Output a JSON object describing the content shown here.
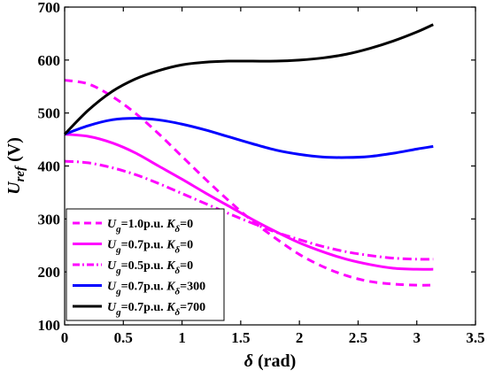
{
  "chart_data": {
    "type": "line",
    "xlabel": {
      "symbol": "δ",
      "unit": " (rad)"
    },
    "ylabel": {
      "symbol": "U",
      "sub": "ref",
      "unit": " (V)"
    },
    "xlim": [
      0,
      3.5
    ],
    "ylim": [
      100,
      700
    ],
    "xticks": [
      0,
      0.5,
      1,
      1.5,
      2,
      2.5,
      3,
      3.5
    ],
    "yticks": [
      100,
      200,
      300,
      400,
      500,
      600,
      700
    ],
    "xtick_labels": [
      "0",
      "0.5",
      "1",
      "1.5",
      "2",
      "2.5",
      "3",
      "3.5"
    ],
    "ytick_labels": [
      "100",
      "200",
      "300",
      "400",
      "500",
      "600",
      "700"
    ],
    "grid": false,
    "legend_position": "bottom-left",
    "series": [
      {
        "name": "Ug=1.0p.u. Kδ=0",
        "legend": {
          "a": "U",
          "a_sub": "g",
          "mid": "=1.0p.u. ",
          "b": "K",
          "b_sub": "δ",
          "end": "=0"
        },
        "color": "#ff00ff",
        "style": "dashed",
        "x": [
          0,
          0.2,
          0.4,
          0.6,
          0.8,
          1.0,
          1.2,
          1.4,
          1.6,
          1.8,
          2.0,
          2.2,
          2.4,
          2.6,
          2.8,
          3.0,
          3.14
        ],
        "y": [
          562,
          555,
          532,
          500,
          461,
          418,
          375,
          334,
          296,
          263,
          233,
          210,
          193,
          182,
          177,
          175,
          175
        ]
      },
      {
        "name": "Ug=0.7p.u. Kδ=0",
        "legend": {
          "a": "U",
          "a_sub": "g",
          "mid": "=0.7p.u. ",
          "b": "K",
          "b_sub": "δ",
          "end": "=0"
        },
        "color": "#ff00ff",
        "style": "solid",
        "x": [
          0,
          0.2,
          0.4,
          0.6,
          0.8,
          1.0,
          1.2,
          1.4,
          1.6,
          1.8,
          2.0,
          2.2,
          2.4,
          2.6,
          2.8,
          3.0,
          3.14
        ],
        "y": [
          460,
          456,
          444,
          425,
          400,
          375,
          349,
          324,
          299,
          276,
          255,
          238,
          224,
          214,
          207,
          205,
          205
        ]
      },
      {
        "name": "Ug=0.5p.u. Kδ=0",
        "legend": {
          "a": "U",
          "a_sub": "g",
          "mid": "=0.5p.u. ",
          "b": "K",
          "b_sub": "δ",
          "end": "=0"
        },
        "color": "#ff00ff",
        "style": "dashdot",
        "x": [
          0,
          0.2,
          0.4,
          0.6,
          0.8,
          1.0,
          1.2,
          1.4,
          1.6,
          1.8,
          2.0,
          2.2,
          2.4,
          2.6,
          2.8,
          3.0,
          3.14
        ],
        "y": [
          409,
          406,
          397,
          384,
          367,
          348,
          329,
          310,
          292,
          275,
          261,
          248,
          238,
          231,
          226,
          224,
          224
        ]
      },
      {
        "name": "Ug=0.7p.u. Kδ=300",
        "legend": {
          "a": "U",
          "a_sub": "g",
          "mid": "=0.7p.u. ",
          "b": "K",
          "b_sub": "δ",
          "end": "=300"
        },
        "color": "#0000ff",
        "style": "solid",
        "x": [
          0,
          0.2,
          0.4,
          0.6,
          0.8,
          1.0,
          1.2,
          1.4,
          1.6,
          1.8,
          2.0,
          2.2,
          2.4,
          2.6,
          2.8,
          3.0,
          3.14
        ],
        "y": [
          460,
          476,
          487,
          490,
          487,
          479,
          468,
          455,
          442,
          430,
          422,
          417,
          416,
          418,
          424,
          432,
          437
        ]
      },
      {
        "name": "Ug=0.7p.u. Kδ=700",
        "legend": {
          "a": "U",
          "a_sub": "g",
          "mid": "=0.7p.u. ",
          "b": "K",
          "b_sub": "δ",
          "end": "=700"
        },
        "color": "#000000",
        "style": "solid",
        "x": [
          0,
          0.2,
          0.4,
          0.6,
          0.8,
          1.0,
          1.2,
          1.4,
          1.6,
          1.8,
          2.0,
          2.2,
          2.4,
          2.6,
          2.8,
          3.0,
          3.14
        ],
        "y": [
          460,
          505,
          540,
          564,
          580,
          591,
          596,
          598,
          598,
          598,
          600,
          604,
          611,
          622,
          636,
          653,
          667
        ]
      }
    ]
  }
}
